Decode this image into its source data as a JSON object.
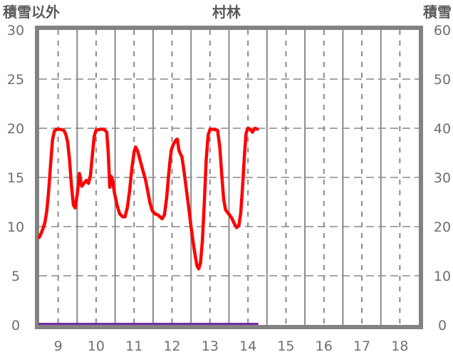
{
  "header": {
    "left_axis_title": "積雪以外",
    "chart_title": "村林",
    "right_axis_title": "積雪"
  },
  "colors": {
    "background": "#ffffff",
    "frame": "#828282",
    "grid": "#8a8a8a",
    "grid_light": "#a6a6a6",
    "axis_text": "#6f6f6f",
    "title_text": "#595959",
    "series_main": "#ff0000",
    "series_snow": "#7030a0"
  },
  "chart_data": {
    "type": "line",
    "title": "村林",
    "x_axis": {
      "range": [
        8.5,
        18.5
      ],
      "ticks": [
        9,
        10,
        11,
        12,
        13,
        14,
        15,
        16,
        17,
        18
      ],
      "tick_labels": [
        "9",
        "10",
        "11",
        "12",
        "13",
        "14",
        "15",
        "16",
        "17",
        "18"
      ]
    },
    "y_left": {
      "label": "積雪以外",
      "range": [
        0,
        30
      ],
      "ticks": [
        0,
        5,
        10,
        15,
        20,
        25,
        30
      ],
      "tick_labels": [
        "0",
        "5",
        "10",
        "15",
        "20",
        "25",
        "30"
      ]
    },
    "y_right": {
      "label": "積雪",
      "range": [
        0,
        60
      ],
      "ticks": [
        0,
        10,
        20,
        30,
        40,
        50,
        60
      ],
      "tick_labels": [
        "0",
        "10",
        "20",
        "30",
        "40",
        "50",
        "60"
      ]
    },
    "grid": {
      "h_dashed": [
        5,
        10,
        15,
        20,
        25
      ],
      "v_dashed": [
        9,
        10,
        11,
        12,
        13,
        14,
        15,
        16,
        17,
        18
      ],
      "v_solid": [
        9.5,
        10.5,
        11.5,
        12.5,
        13.5,
        14.5,
        15.5,
        16.5,
        17.5
      ]
    },
    "legend": "none",
    "series": [
      {
        "name": "積雪以外",
        "axis": "left",
        "color": "#ff0000",
        "width": 4.5,
        "points": [
          [
            8.5,
            8.9
          ],
          [
            8.55,
            9.3
          ],
          [
            8.6,
            9.8
          ],
          [
            8.65,
            10.4
          ],
          [
            8.7,
            11.6
          ],
          [
            8.75,
            13.6
          ],
          [
            8.8,
            16.3
          ],
          [
            8.85,
            18.8
          ],
          [
            8.9,
            19.7
          ],
          [
            8.95,
            19.9
          ],
          [
            9.05,
            19.9
          ],
          [
            9.15,
            19.8
          ],
          [
            9.2,
            19.4
          ],
          [
            9.25,
            18.6
          ],
          [
            9.3,
            16.8
          ],
          [
            9.35,
            14.2
          ],
          [
            9.4,
            12.2
          ],
          [
            9.45,
            11.9
          ],
          [
            9.5,
            13.2
          ],
          [
            9.56,
            15.4
          ],
          [
            9.62,
            14.1
          ],
          [
            9.68,
            14.4
          ],
          [
            9.74,
            14.7
          ],
          [
            9.8,
            14.4
          ],
          [
            9.85,
            15.2
          ],
          [
            9.9,
            17.2
          ],
          [
            9.95,
            19.2
          ],
          [
            10.0,
            19.8
          ],
          [
            10.1,
            19.9
          ],
          [
            10.2,
            19.9
          ],
          [
            10.28,
            19.6
          ],
          [
            10.32,
            17.5
          ],
          [
            10.36,
            14.0
          ],
          [
            10.4,
            15.1
          ],
          [
            10.44,
            14.6
          ],
          [
            10.48,
            13.5
          ],
          [
            10.55,
            12.2
          ],
          [
            10.62,
            11.3
          ],
          [
            10.7,
            11.0
          ],
          [
            10.76,
            11.0
          ],
          [
            10.82,
            11.9
          ],
          [
            10.88,
            13.6
          ],
          [
            10.94,
            15.9
          ],
          [
            11.0,
            17.6
          ],
          [
            11.04,
            18.1
          ],
          [
            11.1,
            17.6
          ],
          [
            11.17,
            16.6
          ],
          [
            11.24,
            15.6
          ],
          [
            11.3,
            14.8
          ],
          [
            11.36,
            13.6
          ],
          [
            11.42,
            12.4
          ],
          [
            11.48,
            11.6
          ],
          [
            11.55,
            11.3
          ],
          [
            11.62,
            11.2
          ],
          [
            11.68,
            11.0
          ],
          [
            11.74,
            10.8
          ],
          [
            11.8,
            11.2
          ],
          [
            11.86,
            13.0
          ],
          [
            11.9,
            14.8
          ],
          [
            11.94,
            16.5
          ],
          [
            11.98,
            17.8
          ],
          [
            12.04,
            18.4
          ],
          [
            12.1,
            18.8
          ],
          [
            12.14,
            18.9
          ],
          [
            12.18,
            17.8
          ],
          [
            12.22,
            17.4
          ],
          [
            12.26,
            17.1
          ],
          [
            12.32,
            15.5
          ],
          [
            12.38,
            13.7
          ],
          [
            12.44,
            11.9
          ],
          [
            12.5,
            10.0
          ],
          [
            12.56,
            8.3
          ],
          [
            12.62,
            6.8
          ],
          [
            12.66,
            6.0
          ],
          [
            12.7,
            5.7
          ],
          [
            12.75,
            6.3
          ],
          [
            12.8,
            8.6
          ],
          [
            12.85,
            12.5
          ],
          [
            12.9,
            16.8
          ],
          [
            12.95,
            19.3
          ],
          [
            13.0,
            19.9
          ],
          [
            13.1,
            19.9
          ],
          [
            13.2,
            19.8
          ],
          [
            13.26,
            18.0
          ],
          [
            13.31,
            15.2
          ],
          [
            13.36,
            12.8
          ],
          [
            13.41,
            11.7
          ],
          [
            13.47,
            11.4
          ],
          [
            13.53,
            11.1
          ],
          [
            13.58,
            10.8
          ],
          [
            13.64,
            10.3
          ],
          [
            13.7,
            9.9
          ],
          [
            13.76,
            10.1
          ],
          [
            13.81,
            11.4
          ],
          [
            13.86,
            14.2
          ],
          [
            13.91,
            17.5
          ],
          [
            13.95,
            19.5
          ],
          [
            14.0,
            20.0
          ],
          [
            14.06,
            19.9
          ],
          [
            14.12,
            19.6
          ],
          [
            14.18,
            20.0
          ],
          [
            14.25,
            19.9
          ]
        ]
      },
      {
        "name": "積雪",
        "axis": "right",
        "color": "#7030a0",
        "width": 3,
        "points": [
          [
            8.5,
            0
          ],
          [
            14.25,
            0
          ]
        ]
      }
    ]
  }
}
